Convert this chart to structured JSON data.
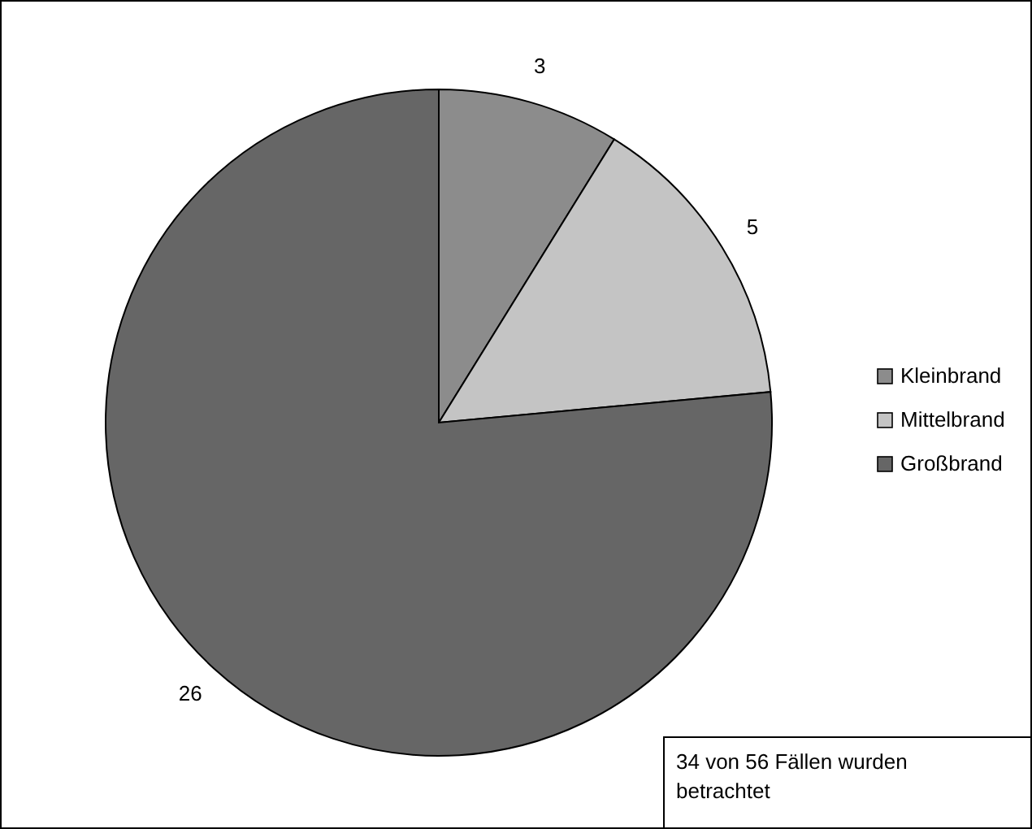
{
  "chart_data": {
    "type": "pie",
    "categories": [
      "Kleinbrand",
      "Mittelbrand",
      "Großbrand"
    ],
    "values": [
      3,
      5,
      26
    ],
    "colors": [
      "#8c8c8c",
      "#c4c4c4",
      "#666666"
    ],
    "data_labels": true,
    "legend": "right",
    "annotations": [
      "34 von 56 Fällen wurden betrachtet"
    ]
  }
}
